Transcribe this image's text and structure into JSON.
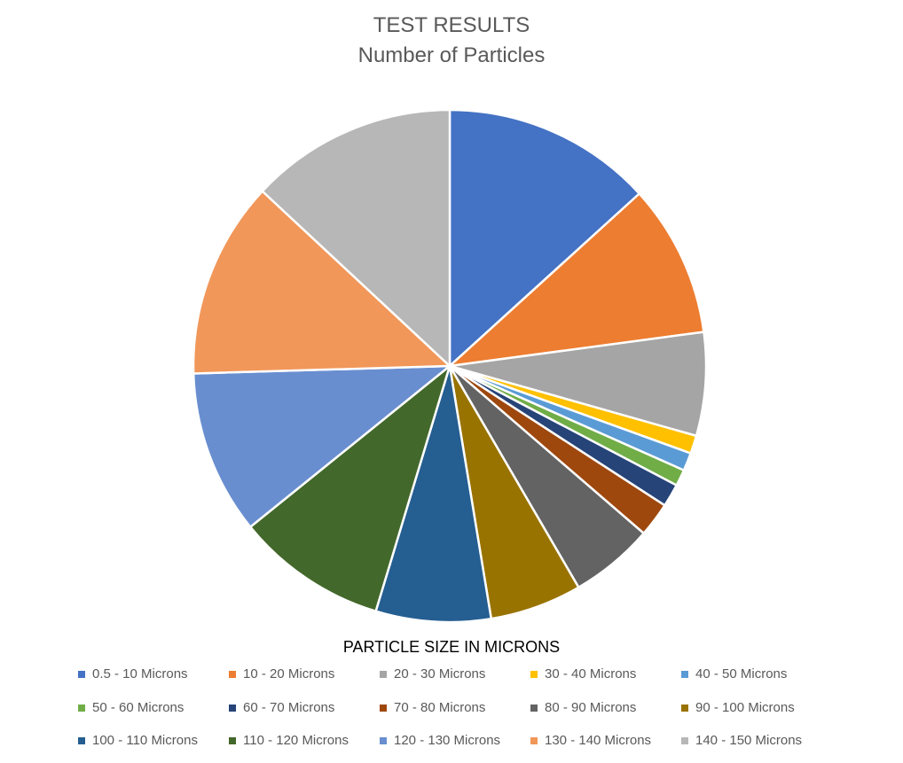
{
  "chart_data": {
    "type": "pie",
    "title": "TEST RESULTS",
    "subtitle": "Number of Particles",
    "legend_title": "PARTICLE SIZE IN MICRONS",
    "legend_position": "bottom",
    "categories": [
      "0.5 - 10 Microns",
      "10 - 20 Microns",
      "20 - 30 Microns",
      "30 - 40 Microns",
      "40 - 50 Microns",
      "50 - 60 Microns",
      "60 - 70 Microns",
      "70 - 80 Microns",
      "80 - 90 Microns",
      "90 - 100 Microns",
      "100 - 110 Microns",
      "110 - 120 Microns",
      "120 - 130 Microns",
      "130 - 140 Microns",
      "140 - 150 Microns"
    ],
    "values": [
      12.8,
      9.3,
      6.3,
      1.1,
      1.1,
      1.0,
      1.4,
      2.1,
      5.1,
      5.6,
      7.0,
      9.2,
      10.0,
      12.0,
      12.6
    ],
    "colors": [
      "#4472C4",
      "#ED7D31",
      "#A5A5A5",
      "#FFC000",
      "#5B9BD5",
      "#70AD47",
      "#264478",
      "#9E480E",
      "#636363",
      "#997300",
      "#255E91",
      "#43682B",
      "#698ED0",
      "#F1975A",
      "#B7B7B7"
    ]
  }
}
